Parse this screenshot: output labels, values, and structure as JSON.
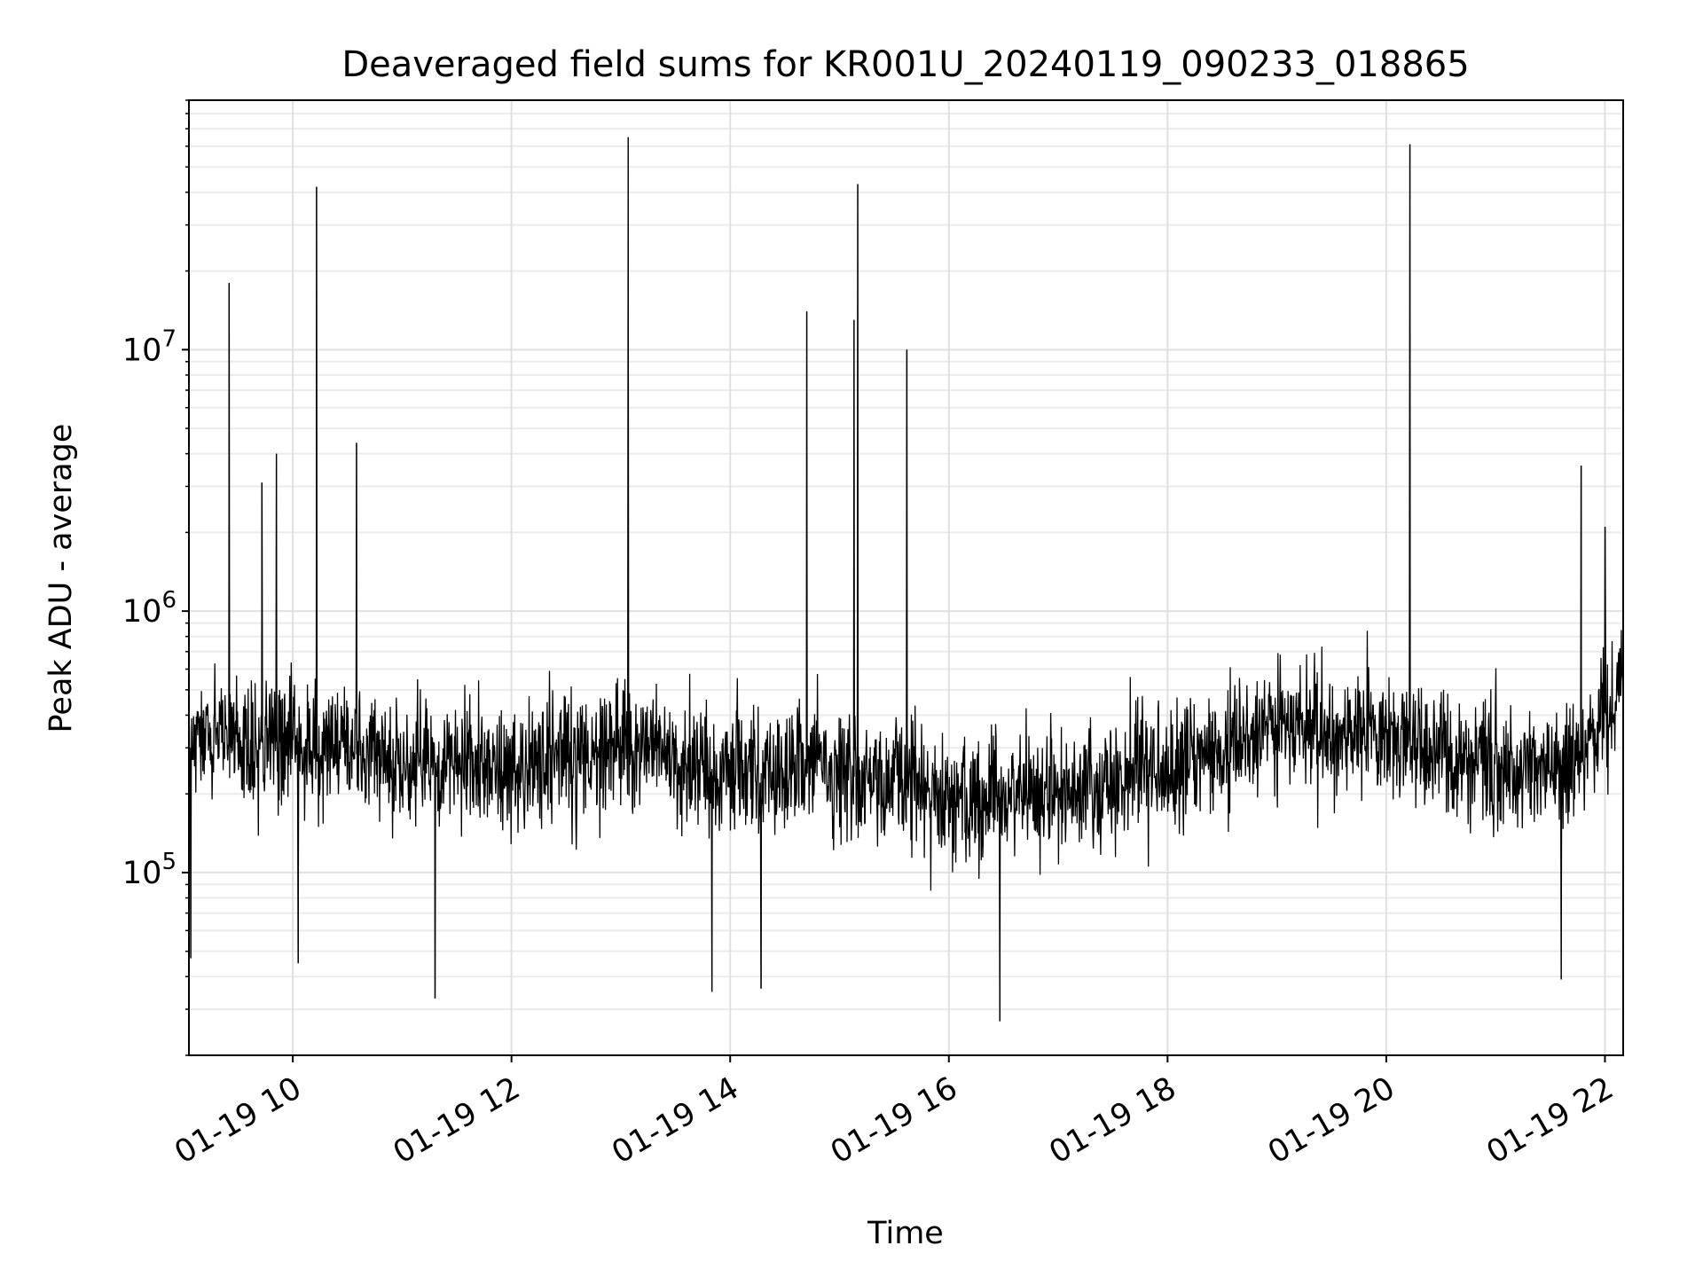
{
  "chart_data": {
    "type": "line",
    "title": "Deaveraged field sums for KR001U_20240119_090233_018865",
    "xlabel": "Time",
    "ylabel": "Peak ADU - average",
    "yscale": "log",
    "xlim": [
      "2024-01-19 09:03",
      "2024-01-19 22:10"
    ],
    "ylim": [
      20000,
      90000000
    ],
    "x_ticks": [
      "01-19 10",
      "01-19 12",
      "01-19 14",
      "01-19 16",
      "01-19 18",
      "01-19 20",
      "01-19 22"
    ],
    "y_ticks": [
      {
        "base": "10",
        "exponent": "5"
      },
      {
        "base": "10",
        "exponent": "6"
      },
      {
        "base": "10",
        "exponent": "7"
      }
    ],
    "grid": true,
    "line_color": "#000000",
    "baseline": [
      {
        "x": "2024-01-19 09:03",
        "y": 300000
      },
      {
        "x": "2024-01-19 10:00",
        "y": 320000
      },
      {
        "x": "2024-01-19 11:00",
        "y": 260000
      },
      {
        "x": "2024-01-19 12:00",
        "y": 250000
      },
      {
        "x": "2024-01-19 13:00",
        "y": 300000
      },
      {
        "x": "2024-01-19 14:00",
        "y": 240000
      },
      {
        "x": "2024-01-19 15:00",
        "y": 240000
      },
      {
        "x": "2024-01-19 16:00",
        "y": 190000
      },
      {
        "x": "2024-01-19 17:00",
        "y": 200000
      },
      {
        "x": "2024-01-19 18:00",
        "y": 250000
      },
      {
        "x": "2024-01-19 19:00",
        "y": 360000
      },
      {
        "x": "2024-01-19 20:00",
        "y": 340000
      },
      {
        "x": "2024-01-19 21:00",
        "y": 250000
      },
      {
        "x": "2024-01-19 21:45",
        "y": 260000
      },
      {
        "x": "2024-01-19 22:10",
        "y": 550000
      }
    ],
    "spikes": [
      {
        "x": "2024-01-19 09:25",
        "y": 18000000
      },
      {
        "x": "2024-01-19 09:43",
        "y": 3100000
      },
      {
        "x": "2024-01-19 09:51",
        "y": 4000000
      },
      {
        "x": "2024-01-19 10:13",
        "y": 42000000
      },
      {
        "x": "2024-01-19 10:35",
        "y": 4400000
      },
      {
        "x": "2024-01-19 13:04",
        "y": 65000000
      },
      {
        "x": "2024-01-19 14:42",
        "y": 14000000
      },
      {
        "x": "2024-01-19 15:08",
        "y": 13000000
      },
      {
        "x": "2024-01-19 15:10",
        "y": 43000000
      },
      {
        "x": "2024-01-19 15:37",
        "y": 10000000
      },
      {
        "x": "2024-01-19 20:13",
        "y": 61000000
      },
      {
        "x": "2024-01-19 21:47",
        "y": 3600000
      },
      {
        "x": "2024-01-19 22:00",
        "y": 2100000
      }
    ],
    "dips": [
      {
        "x": "2024-01-19 09:04",
        "y": 47000
      },
      {
        "x": "2024-01-19 10:03",
        "y": 45000
      },
      {
        "x": "2024-01-19 11:18",
        "y": 33000
      },
      {
        "x": "2024-01-19 13:50",
        "y": 35000
      },
      {
        "x": "2024-01-19 14:17",
        "y": 36000
      },
      {
        "x": "2024-01-19 16:28",
        "y": 27000
      },
      {
        "x": "2024-01-19 21:36",
        "y": 39000
      }
    ]
  }
}
